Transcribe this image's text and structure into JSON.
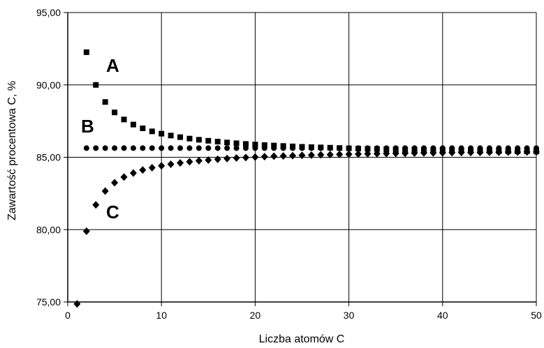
{
  "chart_data": {
    "type": "scatter",
    "xlabel": "Liczba atomów C",
    "ylabel": "Zawartość procentowa C, %",
    "xlim": [
      0,
      50
    ],
    "ylim": [
      75,
      95
    ],
    "x_ticks": [
      "0",
      "10",
      "20",
      "30",
      "40",
      "50"
    ],
    "y_ticks": [
      "75,00",
      "80,00",
      "85,00",
      "90,00",
      "95,00"
    ],
    "grid": true,
    "legend": "none",
    "series_labels": [
      "A",
      "B",
      "C"
    ],
    "series": [
      {
        "name": "A",
        "marker": "square",
        "x": [
          2,
          3,
          4,
          5,
          6,
          7,
          8,
          9,
          10,
          11,
          12,
          13,
          14,
          15,
          16,
          17,
          18,
          19,
          20,
          21,
          22,
          23,
          24,
          25,
          26,
          27,
          28,
          29,
          30,
          31,
          32,
          33,
          34,
          35,
          36,
          37,
          38,
          39,
          40,
          41,
          42,
          43,
          44,
          45,
          46,
          47,
          48,
          49,
          50
        ],
        "y": [
          92.26,
          90.0,
          88.82,
          88.1,
          87.61,
          87.26,
          87.0,
          86.79,
          86.63,
          86.5,
          86.39,
          86.29,
          86.21,
          86.14,
          86.08,
          86.02,
          85.97,
          85.92,
          85.88,
          85.84,
          85.81,
          85.78,
          85.75,
          85.72,
          85.7,
          85.68,
          85.66,
          85.64,
          85.62,
          85.6,
          85.58,
          85.57,
          85.55,
          85.54,
          85.53,
          85.52,
          85.5,
          85.49,
          85.48,
          85.47,
          85.46,
          85.45,
          85.44,
          85.44,
          85.43,
          85.42,
          85.41,
          85.41,
          85.4
        ]
      },
      {
        "name": "B",
        "marker": "circle",
        "x": [
          2,
          3,
          4,
          5,
          6,
          7,
          8,
          9,
          10,
          11,
          12,
          13,
          14,
          15,
          16,
          17,
          18,
          19,
          20,
          21,
          22,
          23,
          24,
          25,
          26,
          27,
          28,
          29,
          30,
          31,
          32,
          33,
          34,
          35,
          36,
          37,
          38,
          39,
          40,
          41,
          42,
          43,
          44,
          45,
          46,
          47,
          48,
          49,
          50
        ],
        "y": [
          85.63,
          85.63,
          85.63,
          85.63,
          85.63,
          85.63,
          85.63,
          85.63,
          85.63,
          85.63,
          85.63,
          85.63,
          85.63,
          85.63,
          85.63,
          85.63,
          85.63,
          85.63,
          85.63,
          85.63,
          85.63,
          85.63,
          85.63,
          85.63,
          85.63,
          85.63,
          85.63,
          85.63,
          85.63,
          85.63,
          85.63,
          85.63,
          85.63,
          85.63,
          85.63,
          85.63,
          85.63,
          85.63,
          85.63,
          85.63,
          85.63,
          85.63,
          85.63,
          85.63,
          85.63,
          85.63,
          85.63,
          85.63,
          85.63
        ]
      },
      {
        "name": "C",
        "marker": "diamond",
        "x": [
          1,
          2,
          3,
          4,
          5,
          6,
          7,
          8,
          9,
          10,
          11,
          12,
          13,
          14,
          15,
          16,
          17,
          18,
          19,
          20,
          21,
          22,
          23,
          24,
          25,
          26,
          27,
          28,
          29,
          30,
          31,
          32,
          33,
          34,
          35,
          36,
          37,
          38,
          39,
          40,
          41,
          42,
          43,
          44,
          45,
          46,
          47,
          48,
          49,
          50
        ],
        "y": [
          74.87,
          79.89,
          81.71,
          82.66,
          83.24,
          83.63,
          83.91,
          84.12,
          84.28,
          84.41,
          84.52,
          84.61,
          84.69,
          84.76,
          84.81,
          84.86,
          84.91,
          84.95,
          84.98,
          85.01,
          85.04,
          85.07,
          85.09,
          85.11,
          85.13,
          85.15,
          85.17,
          85.18,
          85.2,
          85.21,
          85.22,
          85.24,
          85.25,
          85.26,
          85.27,
          85.28,
          85.29,
          85.3,
          85.3,
          85.31,
          85.32,
          85.33,
          85.33,
          85.34,
          85.35,
          85.35,
          85.36,
          85.36,
          85.37,
          85.37
        ]
      }
    ]
  }
}
